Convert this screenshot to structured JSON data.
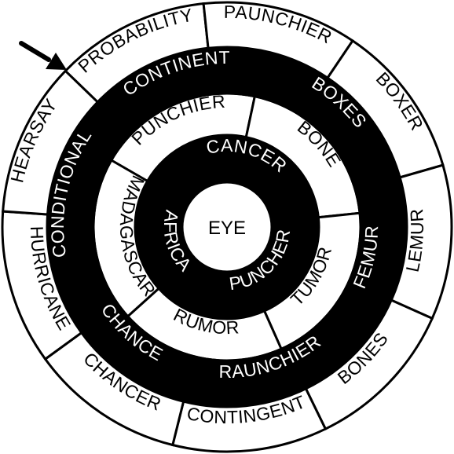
{
  "center": {
    "word": "EYE"
  },
  "rings": [
    {
      "id": "ring-1",
      "shade": "black",
      "words": [
        "CANCER",
        "PUNCHER",
        "AFRICA"
      ]
    },
    {
      "id": "ring-2",
      "shade": "white",
      "words": [
        "PUNCHIER",
        "BONE",
        "TUMOR",
        "RUMOR",
        "MADAGASCAR"
      ]
    },
    {
      "id": "ring-3",
      "shade": "black",
      "words": [
        "CONTINENT",
        "BOXES",
        "FEMUR",
        "RAUNCHIER",
        "CHANCE",
        "CONDITIONAL"
      ]
    },
    {
      "id": "ring-4",
      "shade": "white",
      "words": [
        "PROBABILITY",
        "PAUNCHIER",
        "BOXER",
        "LEMUR",
        "BONES",
        "CONTINGENT",
        "CHANCER",
        "HURRICANE",
        "HEARSAY"
      ]
    }
  ],
  "colors": {
    "black": "#000000",
    "white": "#ffffff"
  },
  "start_marker": {
    "icon": "arrow-icon"
  }
}
